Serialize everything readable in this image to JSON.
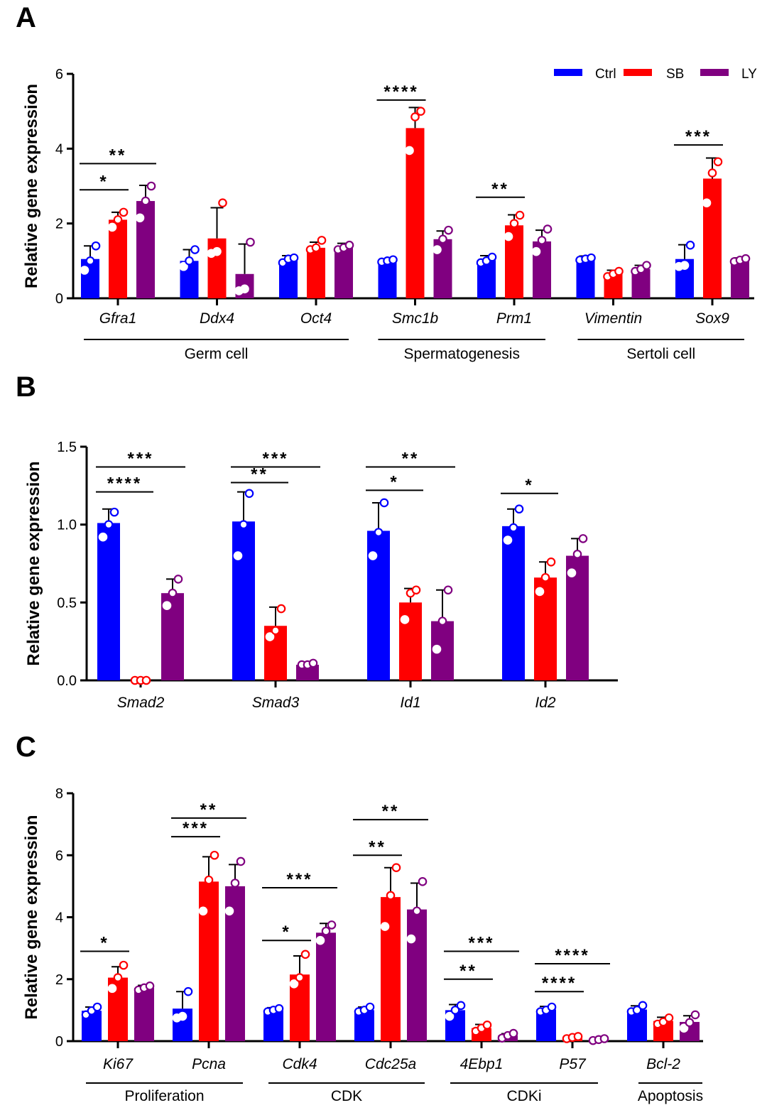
{
  "colors": {
    "Ctrl": "#0000ff",
    "SB": "#ff0000",
    "LY": "#800080",
    "axis": "#000000"
  },
  "legend": [
    "Ctrl",
    "SB",
    "LY"
  ],
  "chart_data": [
    {
      "panel": "A",
      "type": "bar",
      "ylabel": "Relative gene expression",
      "ylim": [
        0,
        6
      ],
      "yticks": [
        0,
        2,
        4,
        6
      ],
      "legend_position": "top-right",
      "categories": [
        "Gfra1",
        "Ddx4",
        "Oct4",
        "Smc1b",
        "Prm1",
        "Vimentin",
        "Sox9"
      ],
      "series": [
        {
          "name": "Ctrl",
          "values": [
            1.05,
            1.0,
            1.02,
            1.0,
            1.02,
            1.05,
            1.05
          ],
          "errors": [
            0.35,
            0.3,
            0.12,
            0.05,
            0.12,
            0.08,
            0.38
          ],
          "points": [
            [
              0.75,
              1.0,
              1.4
            ],
            [
              0.85,
              1.0,
              1.3
            ],
            [
              0.95,
              1.05,
              1.08
            ],
            [
              0.97,
              1.0,
              1.03
            ],
            [
              0.95,
              1.0,
              1.1
            ],
            [
              1.02,
              1.05,
              1.08
            ],
            [
              0.85,
              0.88,
              1.42
            ]
          ]
        },
        {
          "name": "SB",
          "values": [
            2.1,
            1.6,
            1.35,
            4.55,
            1.95,
            0.65,
            3.2
          ],
          "errors": [
            0.2,
            0.82,
            0.15,
            0.55,
            0.28,
            0.1,
            0.55
          ],
          "points": [
            [
              1.9,
              2.1,
              2.3
            ],
            [
              1.2,
              1.25,
              2.55
            ],
            [
              1.3,
              1.35,
              1.55
            ],
            [
              3.95,
              4.85,
              5.0
            ],
            [
              1.65,
              2.0,
              2.22
            ],
            [
              0.58,
              0.65,
              0.72
            ],
            [
              2.55,
              3.35,
              3.65
            ]
          ]
        },
        {
          "name": "LY",
          "values": [
            2.6,
            0.65,
            1.35,
            1.58,
            1.52,
            0.78,
            1.02
          ],
          "errors": [
            0.42,
            0.8,
            0.12,
            0.22,
            0.3,
            0.1,
            0.06
          ],
          "points": [
            [
              2.15,
              2.6,
              3.0
            ],
            [
              0.2,
              0.25,
              1.5
            ],
            [
              1.3,
              1.35,
              1.42
            ],
            [
              1.3,
              1.58,
              1.82
            ],
            [
              1.25,
              1.55,
              1.85
            ],
            [
              0.72,
              0.78,
              0.88
            ],
            [
              0.98,
              1.02,
              1.06
            ]
          ]
        }
      ],
      "significance": [
        {
          "category": "Gfra1",
          "from": "Ctrl",
          "to": "SB",
          "y": 2.9,
          "label": "*"
        },
        {
          "category": "Gfra1",
          "from": "Ctrl",
          "to": "LY",
          "y": 3.6,
          "label": "**"
        },
        {
          "category": "Smc1b",
          "from": "Ctrl",
          "to": "SB",
          "y": 5.3,
          "label": "****"
        },
        {
          "category": "Prm1",
          "from": "Ctrl",
          "to": "SB",
          "y": 2.7,
          "label": "**"
        },
        {
          "category": "Sox9",
          "from": "Ctrl",
          "to": "SB",
          "y": 4.1,
          "label": "***"
        }
      ],
      "groups": [
        {
          "label": "Germ cell",
          "from": 0,
          "to": 2
        },
        {
          "label": "Spermatogenesis",
          "from": 3,
          "to": 4
        },
        {
          "label": "Sertoli cell",
          "from": 5,
          "to": 6
        }
      ]
    },
    {
      "panel": "B",
      "type": "bar",
      "ylabel": "Relative gene expression",
      "ylim": [
        0,
        1.5
      ],
      "yticks": [
        0.0,
        0.5,
        1.0,
        1.5
      ],
      "categories": [
        "Smad2",
        "Smad3",
        "Id1",
        "Id2"
      ],
      "series": [
        {
          "name": "Ctrl",
          "values": [
            1.01,
            1.02,
            0.96,
            0.99
          ],
          "errors": [
            0.09,
            0.19,
            0.18,
            0.11
          ],
          "points": [
            [
              0.92,
              1.0,
              1.08
            ],
            [
              0.8,
              1.0,
              1.2
            ],
            [
              0.8,
              0.95,
              1.14
            ],
            [
              0.9,
              0.98,
              1.1
            ]
          ]
        },
        {
          "name": "SB",
          "values": [
            0.0,
            0.35,
            0.5,
            0.66
          ],
          "errors": [
            0.0,
            0.12,
            0.09,
            0.1
          ],
          "points": [
            [
              0.0,
              0.0,
              0.0
            ],
            [
              0.28,
              0.32,
              0.46
            ],
            [
              0.39,
              0.56,
              0.58
            ],
            [
              0.57,
              0.66,
              0.76
            ]
          ]
        },
        {
          "name": "LY",
          "values": [
            0.56,
            0.1,
            0.38,
            0.8
          ],
          "errors": [
            0.09,
            0.01,
            0.2,
            0.11
          ],
          "points": [
            [
              0.48,
              0.56,
              0.65
            ],
            [
              0.1,
              0.1,
              0.11
            ],
            [
              0.2,
              0.38,
              0.58
            ],
            [
              0.69,
              0.81,
              0.91
            ]
          ]
        }
      ],
      "significance": [
        {
          "category": "Smad2",
          "from": "Ctrl",
          "to": "SB",
          "y": 1.21,
          "label": "****"
        },
        {
          "category": "Smad2",
          "from": "Ctrl",
          "to": "LY",
          "y": 1.37,
          "label": "***"
        },
        {
          "category": "Smad3",
          "from": "Ctrl",
          "to": "SB",
          "y": 1.27,
          "label": "**"
        },
        {
          "category": "Smad3",
          "from": "Ctrl",
          "to": "LY",
          "y": 1.37,
          "label": "***"
        },
        {
          "category": "Id1",
          "from": "Ctrl",
          "to": "SB",
          "y": 1.22,
          "label": "*"
        },
        {
          "category": "Id1",
          "from": "Ctrl",
          "to": "LY",
          "y": 1.37,
          "label": "**"
        },
        {
          "category": "Id2",
          "from": "Ctrl",
          "to": "SB",
          "y": 1.2,
          "label": "*"
        }
      ],
      "groups": []
    },
    {
      "panel": "C",
      "type": "bar",
      "ylabel": "Relative gene expression",
      "ylim": [
        0,
        8
      ],
      "yticks": [
        0,
        2,
        4,
        6,
        8
      ],
      "categories": [
        "Ki67",
        "Pcna",
        "Cdk4",
        "Cdc25a",
        "4Ebp1",
        "P57",
        "Bcl-2"
      ],
      "series": [
        {
          "name": "Ctrl",
          "values": [
            0.98,
            1.05,
            1.0,
            1.0,
            1.0,
            1.02,
            1.02
          ],
          "errors": [
            0.12,
            0.55,
            0.08,
            0.1,
            0.18,
            0.1,
            0.12
          ],
          "points": [
            [
              0.85,
              0.98,
              1.1
            ],
            [
              0.75,
              0.8,
              1.6
            ],
            [
              0.95,
              1.0,
              1.05
            ],
            [
              0.95,
              1.0,
              1.1
            ],
            [
              0.8,
              1.0,
              1.15
            ],
            [
              0.95,
              1.0,
              1.1
            ],
            [
              0.95,
              1.0,
              1.15
            ]
          ]
        },
        {
          "name": "SB",
          "values": [
            2.05,
            5.15,
            2.15,
            4.65,
            0.42,
            0.12,
            0.65
          ],
          "errors": [
            0.35,
            0.8,
            0.6,
            0.95,
            0.12,
            0.04,
            0.12
          ],
          "points": [
            [
              1.7,
              2.05,
              2.45
            ],
            [
              4.2,
              5.2,
              6.0
            ],
            [
              1.85,
              2.05,
              2.8
            ],
            [
              3.7,
              4.7,
              5.6
            ],
            [
              0.32,
              0.42,
              0.52
            ],
            [
              0.08,
              0.12,
              0.15
            ],
            [
              0.55,
              0.62,
              0.75
            ]
          ]
        },
        {
          "name": "LY",
          "values": [
            1.72,
            5.0,
            3.5,
            4.25,
            0.18,
            0.05,
            0.62
          ],
          "errors": [
            0.08,
            0.7,
            0.3,
            0.85,
            0.06,
            0.03,
            0.2
          ],
          "points": [
            [
              1.65,
              1.72,
              1.78
            ],
            [
              4.2,
              5.1,
              5.8
            ],
            [
              3.25,
              3.55,
              3.75
            ],
            [
              3.3,
              4.2,
              5.15
            ],
            [
              0.1,
              0.18,
              0.25
            ],
            [
              0.02,
              0.05,
              0.08
            ],
            [
              0.42,
              0.6,
              0.85
            ]
          ]
        }
      ],
      "significance": [
        {
          "category": "Ki67",
          "from": "Ctrl",
          "to": "SB",
          "y": 2.9,
          "label": "*"
        },
        {
          "category": "Pcna",
          "from": "Ctrl",
          "to": "SB",
          "y": 6.6,
          "label": "***"
        },
        {
          "category": "Pcna",
          "from": "Ctrl",
          "to": "LY",
          "y": 7.2,
          "label": "**"
        },
        {
          "category": "Cdk4",
          "from": "Ctrl",
          "to": "SB",
          "y": 3.25,
          "label": "*"
        },
        {
          "category": "Cdk4",
          "from": "Ctrl",
          "to": "LY",
          "y": 4.95,
          "label": "***"
        },
        {
          "category": "Cdc25a",
          "from": "Ctrl",
          "to": "SB",
          "y": 6.0,
          "label": "**"
        },
        {
          "category": "Cdc25a",
          "from": "Ctrl",
          "to": "LY",
          "y": 7.15,
          "label": "**"
        },
        {
          "category": "4Ebp1",
          "from": "Ctrl",
          "to": "SB",
          "y": 2.0,
          "label": "**"
        },
        {
          "category": "4Ebp1",
          "from": "Ctrl",
          "to": "LY",
          "y": 2.9,
          "label": "***"
        },
        {
          "category": "P57",
          "from": "Ctrl",
          "to": "SB",
          "y": 1.6,
          "label": "****"
        },
        {
          "category": "P57",
          "from": "Ctrl",
          "to": "LY",
          "y": 2.5,
          "label": "****"
        }
      ],
      "groups": [
        {
          "label": "Proliferation",
          "from": 0,
          "to": 1
        },
        {
          "label": "CDK",
          "from": 2,
          "to": 3
        },
        {
          "label": "CDKi",
          "from": 4,
          "to": 5
        },
        {
          "label": "Apoptosis",
          "from": 6,
          "to": 6
        }
      ]
    }
  ]
}
